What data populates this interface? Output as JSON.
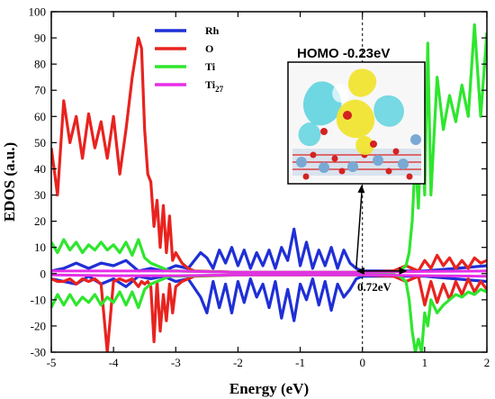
{
  "chart_data": {
    "type": "line",
    "xlabel": "Energy (eV)",
    "ylabel": "EDOS (a.u.)",
    "xlim": [
      -5,
      2
    ],
    "ylim": [
      -30,
      100
    ],
    "xticks": [
      "-5",
      "-4",
      "-3",
      "-2",
      "-1",
      "0",
      "1",
      "2"
    ],
    "yticks": [
      "-30",
      "-20",
      "-10",
      "0",
      "10",
      "20",
      "30",
      "40",
      "50",
      "60",
      "70",
      "80",
      "90",
      "100"
    ],
    "grid": false,
    "fermi_level_line": 0,
    "legend": {
      "placement": "top-left",
      "entries": [
        {
          "label": "Rh",
          "color": "#1f2fd6"
        },
        {
          "label": "O",
          "color": "#e8231f"
        },
        {
          "label": "Ti",
          "color": "#2ee62e"
        },
        {
          "label": "Ti",
          "sub": "27",
          "color": "#e62ee6"
        }
      ]
    },
    "annotations": {
      "homo_label": "HOMO -0.23eV",
      "gap_label": "0.72eV",
      "homo_energy": -0.23,
      "gap_start": -0.1,
      "gap_end": 0.72,
      "gap_y": 1
    },
    "series": [
      {
        "name": "Rh",
        "color": "#1f2fd6",
        "x": [
          -5.0,
          -4.8,
          -4.6,
          -4.4,
          -4.2,
          -4.0,
          -3.8,
          -3.6,
          -3.4,
          -3.2,
          -3.0,
          -2.8,
          -2.6,
          -2.5,
          -2.4,
          -2.3,
          -2.2,
          -2.1,
          -2.0,
          -1.9,
          -1.8,
          -1.7,
          -1.6,
          -1.5,
          -1.4,
          -1.3,
          -1.2,
          -1.1,
          -1.0,
          -0.9,
          -0.8,
          -0.7,
          -0.6,
          -0.5,
          -0.4,
          -0.3,
          -0.2,
          -0.1,
          0.0,
          0.5,
          1.0,
          1.5,
          2.0
        ],
        "upper": [
          1,
          2,
          4,
          2,
          4,
          3,
          5,
          1,
          2,
          1,
          3,
          2,
          8,
          6,
          2,
          9,
          4,
          10,
          3,
          9,
          2,
          8,
          3,
          9,
          2,
          10,
          5,
          17,
          3,
          12,
          2,
          9,
          3,
          10,
          2,
          9,
          4,
          2,
          1,
          1,
          1,
          2,
          3
        ],
        "lower": [
          -2,
          -3,
          -4,
          -1,
          -4,
          -2,
          -5,
          -1,
          -2,
          -1,
          -3,
          -2,
          -9,
          -15,
          -3,
          -13,
          -4,
          -15,
          -3,
          -11,
          -2,
          -9,
          -4,
          -13,
          -3,
          -17,
          -6,
          -18,
          -4,
          -10,
          -2,
          -12,
          -3,
          -14,
          -4,
          -9,
          -6,
          -2,
          -1,
          -1,
          -1,
          -2,
          -3
        ]
      },
      {
        "name": "O",
        "color": "#e8231f",
        "x": [
          -5.0,
          -4.9,
          -4.8,
          -4.7,
          -4.6,
          -4.5,
          -4.4,
          -4.3,
          -4.2,
          -4.1,
          -4.0,
          -3.9,
          -3.8,
          -3.7,
          -3.6,
          -3.55,
          -3.5,
          -3.45,
          -3.4,
          -3.35,
          -3.3,
          -3.25,
          -3.2,
          -3.15,
          -3.1,
          -3.05,
          -3.0,
          -2.9,
          -2.8,
          -2.7,
          -2.0,
          -1.0,
          0.0,
          0.5,
          0.7,
          0.8,
          0.9,
          1.0,
          1.1,
          1.2,
          1.3,
          1.4,
          1.5,
          1.6,
          1.7,
          1.8,
          1.9,
          2.0
        ],
        "upper": [
          48,
          30,
          66,
          50,
          60,
          44,
          61,
          48,
          58,
          44,
          60,
          38,
          55,
          75,
          90,
          86,
          55,
          38,
          35,
          18,
          28,
          10,
          26,
          8,
          22,
          5,
          8,
          4,
          2,
          1,
          0.5,
          0.5,
          0.5,
          1,
          3,
          2,
          1,
          5,
          2,
          7,
          3,
          6,
          2,
          5,
          2,
          6,
          4,
          5
        ],
        "lower": [
          -2,
          -3,
          -3,
          -2,
          -4,
          -2,
          -3,
          -2,
          -4,
          -30,
          -3,
          -2,
          -3,
          -2,
          -5,
          -3,
          -4,
          -3,
          -5,
          -26,
          -3,
          -22,
          -8,
          -18,
          -4,
          -15,
          -5,
          -3,
          -2,
          -1,
          -0.5,
          -0.5,
          -0.5,
          -1,
          -3,
          -2,
          -1,
          -12,
          -3,
          -11,
          -4,
          -10,
          -3,
          -8,
          -2,
          -7,
          -3,
          -6
        ]
      },
      {
        "name": "Ti",
        "color": "#2ee62e",
        "x": [
          -5.0,
          -4.9,
          -4.8,
          -4.7,
          -4.6,
          -4.5,
          -4.4,
          -4.3,
          -4.2,
          -4.1,
          -4.0,
          -3.9,
          -3.8,
          -3.7,
          -3.6,
          -3.5,
          -3.4,
          -3.3,
          -3.2,
          -3.1,
          -3.0,
          -2.0,
          -1.0,
          0.0,
          0.5,
          0.6,
          0.7,
          0.75,
          0.8,
          0.85,
          0.9,
          0.95,
          1.0,
          1.05,
          1.1,
          1.2,
          1.3,
          1.4,
          1.5,
          1.6,
          1.7,
          1.8,
          1.9,
          2.0
        ],
        "upper": [
          12,
          8,
          13,
          9,
          12,
          8,
          11,
          9,
          12,
          9,
          11,
          8,
          12,
          7,
          13,
          6,
          4,
          3,
          2,
          1,
          1,
          0.5,
          0.5,
          0.5,
          0.5,
          1,
          3,
          8,
          20,
          45,
          25,
          60,
          30,
          88,
          30,
          75,
          55,
          68,
          58,
          72,
          60,
          95,
          60,
          92
        ],
        "lower": [
          -13,
          -8,
          -12,
          -8,
          -12,
          -9,
          -11,
          -8,
          -12,
          -9,
          -11,
          -7,
          -12,
          -7,
          -13,
          -6,
          -4,
          -3,
          -2,
          -1,
          -1,
          -0.5,
          -0.5,
          -0.5,
          -0.5,
          -1,
          -3,
          -10,
          -22,
          -30,
          -25,
          -30,
          -15,
          -20,
          -10,
          -15,
          -12,
          -10,
          -8,
          -9,
          -7,
          -8,
          -6,
          -7
        ]
      },
      {
        "name": "Ti27",
        "color": "#e62ee6",
        "x": [
          -5.0,
          -4.0,
          -3.0,
          -2.0,
          -1.0,
          0.0,
          1.0,
          2.0
        ],
        "upper": [
          1,
          1,
          1,
          0.5,
          0.5,
          0.5,
          0.8,
          1
        ],
        "lower": [
          -0.5,
          -0.8,
          -0.8,
          -0.5,
          -0.5,
          -0.5,
          -0.8,
          -1
        ]
      }
    ]
  },
  "inset_image": {
    "description_icon": "charge-density-isosurface-image"
  }
}
